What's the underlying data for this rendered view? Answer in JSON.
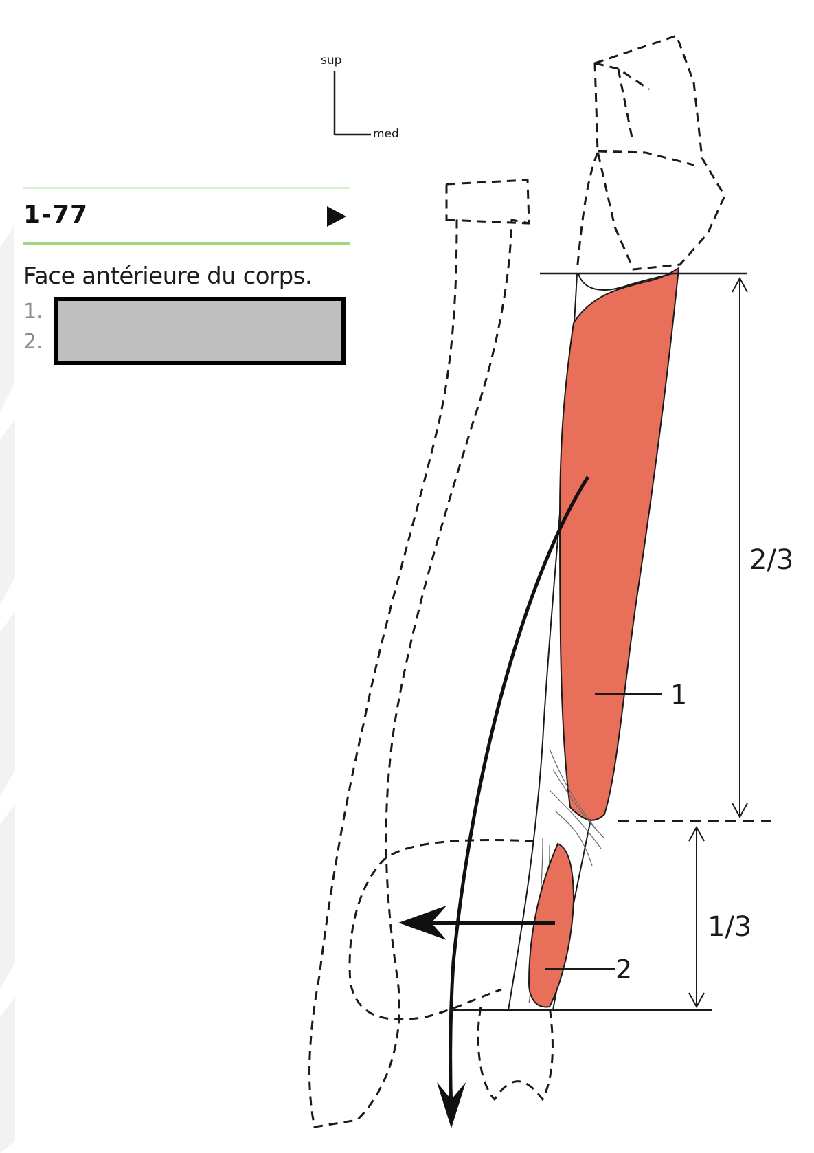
{
  "orientation": {
    "sup_label": "sup",
    "med_label": "med"
  },
  "caption": {
    "figure_number": "1-77",
    "title": "Face antérieure du corps.",
    "legend_numbers": [
      "1.",
      "2."
    ]
  },
  "labels": {
    "region_1": "1",
    "region_2": "2",
    "upper_fraction": "2/3",
    "lower_fraction": "1/3"
  },
  "colors": {
    "muscle_fill": "#e8705a",
    "outline": "#1a1a1a",
    "green_rule": "#9fd67e",
    "redaction_fill": "#bfbfbf"
  },
  "icons": [
    "next-arrow-icon",
    "orientation-axes-icon"
  ]
}
